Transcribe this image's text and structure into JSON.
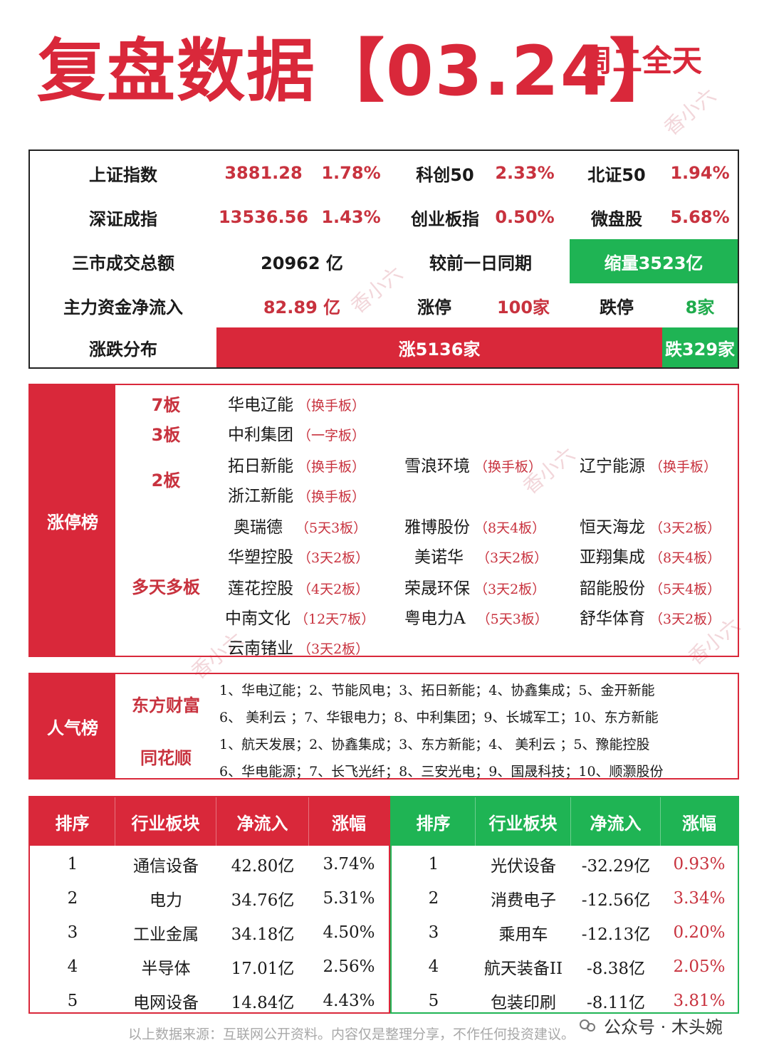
{
  "header": {
    "title": "复盘数据【03.24】",
    "subtitle": "周二全天"
  },
  "watermark": "香小六",
  "market": {
    "sh_name": "上证指数",
    "sh_value": "3881.28",
    "sh_change": "1.78%",
    "kc_name": "科创50",
    "kc_change": "2.33%",
    "bz_name": "北证50",
    "bz_change": "1.94%",
    "sz_name": "深证成指",
    "sz_value": "13536.56",
    "sz_change": "1.43%",
    "cy_name": "创业板指",
    "cy_change": "0.50%",
    "wp_name": "微盘股",
    "wp_change": "5.68%",
    "turnover_label": "三市成交总额",
    "turnover_value": "20962 亿",
    "compare_label": "较前一日同期",
    "compare_value": "缩量3523亿",
    "flow_label": "主力资金净流入",
    "flow_value": "82.89  亿",
    "up_limit_label": "涨停",
    "up_limit_value": "100家",
    "down_limit_label": "跌停",
    "down_limit_value": "8家",
    "dist_label": "涨跌分布",
    "dist_up": "涨5136家",
    "dist_down": "跌329家",
    "dist_up_count": 5136,
    "dist_down_count": 329,
    "accent_red": "#d9283a",
    "accent_green": "#1fb454"
  },
  "limit_up": {
    "label": "涨停榜",
    "cat_7": "7板",
    "cat_3": "3板",
    "cat_2": "2板",
    "cat_multi": "多天多板",
    "rows": [
      [
        {
          "name": "华电辽能",
          "tag": "（换手板）"
        }
      ],
      [
        {
          "name": "中利集团",
          "tag": "（一字板）"
        }
      ],
      [
        {
          "name": "拓日新能",
          "tag": "（换手板）"
        },
        {
          "name": "雪浪环境",
          "tag": "（换手板）"
        },
        {
          "name": "辽宁能源",
          "tag": "（换手板）"
        }
      ],
      [
        {
          "name": "浙江新能",
          "tag": "（换手板）"
        }
      ],
      [
        {
          "name": "奥瑞德",
          "tag": "（5天3板）"
        },
        {
          "name": "雅博股份",
          "tag": "（8天4板）"
        },
        {
          "name": "恒天海龙",
          "tag": "（3天2板）"
        }
      ],
      [
        {
          "name": "华塑控股",
          "tag": "（3天2板）"
        },
        {
          "name": "美诺华",
          "tag": "（3天2板）"
        },
        {
          "name": "亚翔集成",
          "tag": "（8天4板）"
        }
      ],
      [
        {
          "name": "莲花控股",
          "tag": "（4天2板）"
        },
        {
          "name": "荣晟环保",
          "tag": "（3天2板）"
        },
        {
          "name": "韶能股份",
          "tag": "（5天4板）"
        }
      ],
      [
        {
          "name": "中南文化",
          "tag": "（12天7板）"
        },
        {
          "name": "粤电力A",
          "tag": "（5天3板）"
        },
        {
          "name": "舒华体育",
          "tag": "（3天2板）"
        }
      ],
      [
        {
          "name": "云南锗业",
          "tag": "（3天2板）"
        }
      ]
    ]
  },
  "popularity": {
    "label": "人气榜",
    "dfcf": "东方财富",
    "ths": "同花顺",
    "dfcf_line1": "1、华电辽能；2、节能风电；3、拓日新能；4、协鑫集成；5、金开新能",
    "dfcf_line2": "6、 美利云 ；7、华银电力；8、中利集团；9、长城军工；10、东方新能",
    "ths_line1": "1、航天发展；2、协鑫集成；3、东方新能；4、 美利云 ；5、豫能控股",
    "ths_line2": "6、华电能源；7、长飞光纤；8、三安光电；9、国晟科技；10、顺灏股份"
  },
  "sectors": {
    "headers": [
      "排序",
      "行业板块",
      "净流入",
      "涨幅"
    ],
    "inflow": [
      [
        "1",
        "通信设备",
        "42.80亿",
        "3.74%"
      ],
      [
        "2",
        "电力",
        "34.76亿",
        "5.31%"
      ],
      [
        "3",
        "工业金属",
        "34.18亿",
        "4.50%"
      ],
      [
        "4",
        "半导体",
        "17.01亿",
        "2.56%"
      ],
      [
        "5",
        "电网设备",
        "14.84亿",
        "4.43%"
      ]
    ],
    "outflow": [
      [
        "1",
        "光伏设备",
        "-32.29亿",
        "0.93%"
      ],
      [
        "2",
        "消费电子",
        "-12.56亿",
        "3.34%"
      ],
      [
        "3",
        "乘用车",
        "-12.13亿",
        "0.20%"
      ],
      [
        "4",
        "航天装备II",
        "-8.38亿",
        "2.05%"
      ],
      [
        "5",
        "包装印刷",
        "-8.11亿",
        "3.81%"
      ]
    ]
  },
  "footer": {
    "note": "以上数据来源：互联网公开资料。内容仅是整理分享，不作任何投资建议。",
    "brand": "公众号 · 木头婉"
  }
}
